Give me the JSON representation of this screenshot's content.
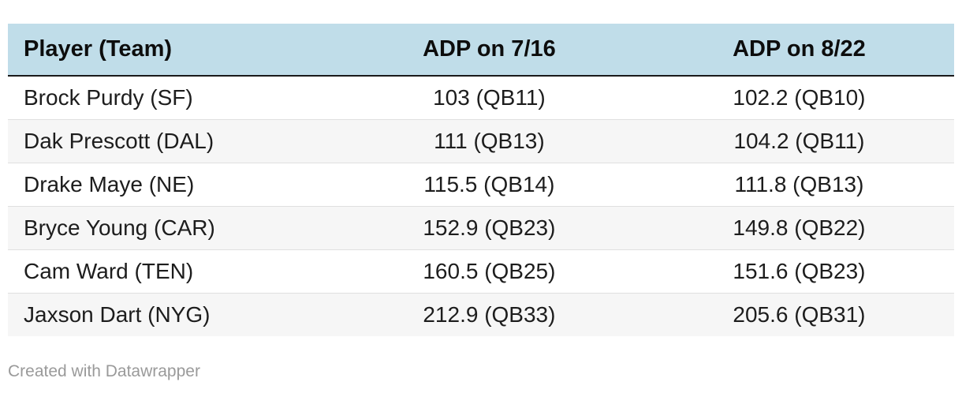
{
  "chart_data": {
    "type": "table",
    "columns": [
      "Player (Team)",
      "ADP on 7/16",
      "ADP on 8/22"
    ],
    "rows": [
      [
        "Brock Purdy (SF)",
        "103 (QB11)",
        "102.2 (QB10)"
      ],
      [
        "Dak Prescott (DAL)",
        "111 (QB13)",
        "104.2 (QB11)"
      ],
      [
        "Drake Maye (NE)",
        "115.5 (QB14)",
        "111.8 (QB13)"
      ],
      [
        "Bryce Young (CAR)",
        "152.9 (QB23)",
        "149.8 (QB22)"
      ],
      [
        "Cam Ward (TEN)",
        "160.5 (QB25)",
        "151.6 (QB23)"
      ],
      [
        "Jaxson Dart (NYG)",
        "212.9 (QB33)",
        "205.6 (QB31)"
      ]
    ],
    "series": [
      {
        "name": "ADP on 7/16",
        "values": [
          103,
          111,
          115.5,
          152.9,
          160.5,
          212.9
        ],
        "ranks": [
          "QB11",
          "QB13",
          "QB14",
          "QB23",
          "QB25",
          "QB33"
        ]
      },
      {
        "name": "ADP on 8/22",
        "values": [
          102.2,
          104.2,
          111.8,
          149.8,
          151.6,
          205.6
        ],
        "ranks": [
          "QB10",
          "QB11",
          "QB13",
          "QB22",
          "QB23",
          "QB31"
        ]
      }
    ],
    "players": [
      "Brock Purdy (SF)",
      "Dak Prescott (DAL)",
      "Drake Maye (NE)",
      "Bryce Young (CAR)",
      "Cam Ward (TEN)",
      "Jaxson Dart (NYG)"
    ],
    "layout": {
      "header_bg": "#c0dde9",
      "alt_row_bg": "#f6f6f6",
      "row_border": "#e0e0e0",
      "header_rule": "#1a1a1a",
      "alignment": [
        "left",
        "center",
        "center"
      ]
    }
  },
  "footer": {
    "credit": "Created with Datawrapper"
  }
}
